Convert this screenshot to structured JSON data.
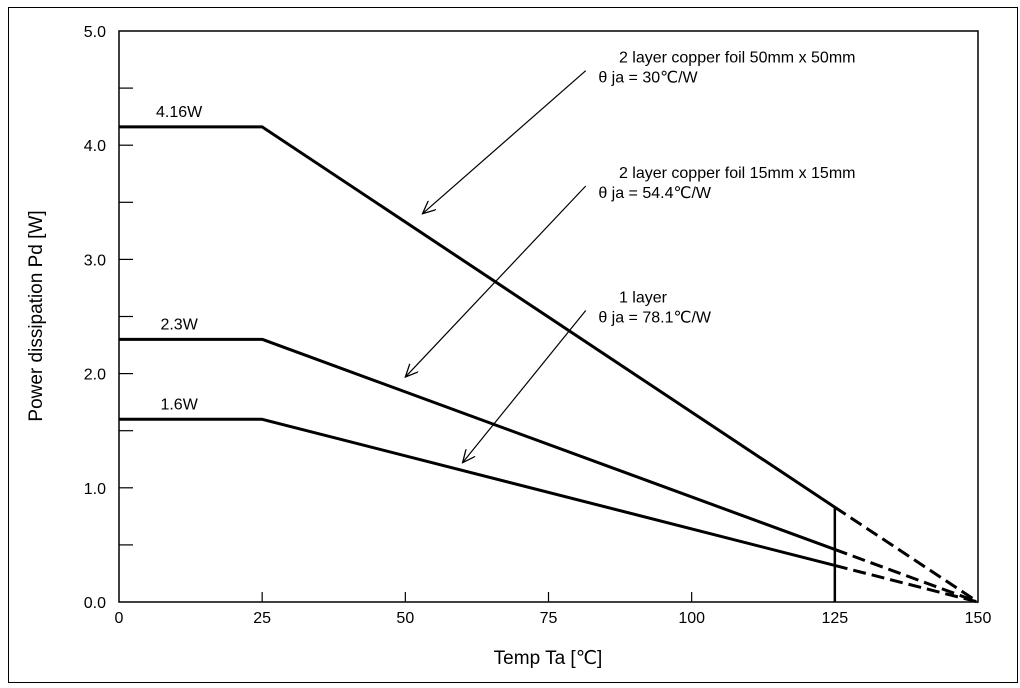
{
  "chart_data": {
    "type": "line",
    "xlabel": "Temp Ta [℃]",
    "ylabel": "Power dissipation Pd [W]",
    "xlim": [
      0,
      150
    ],
    "ylim": [
      0,
      5.0
    ],
    "x_ticks": [
      "0",
      "25",
      "50",
      "75",
      "100",
      "125",
      "150"
    ],
    "y_ticks": [
      "0.0",
      "1.0",
      "2.0",
      "3.0",
      "4.0",
      "5.0"
    ],
    "grid": false,
    "legend": "none",
    "series": [
      {
        "solid": [
          [
            0,
            4.16
          ],
          [
            25,
            4.16
          ],
          [
            125,
            0.83
          ]
        ],
        "dashed": [
          [
            125,
            0.83
          ],
          [
            150,
            0
          ]
        ],
        "label": "4.16W"
      },
      {
        "solid": [
          [
            0,
            2.3
          ],
          [
            25,
            2.3
          ],
          [
            125,
            0.46
          ]
        ],
        "dashed": [
          [
            125,
            0.46
          ],
          [
            150,
            0
          ]
        ],
        "label": "2.3W"
      },
      {
        "solid": [
          [
            0,
            1.6
          ],
          [
            25,
            1.6
          ],
          [
            125,
            0.32
          ]
        ],
        "dashed": [
          [
            125,
            0.32
          ],
          [
            150,
            0
          ]
        ],
        "label": "1.6W"
      }
    ],
    "marker_line": {
      "x": 125,
      "y_from": 0,
      "y_to": 0.83
    },
    "annotations": [
      {
        "line1": "2 layer copper foil 50mm x 50mm",
        "line2": "θ ja = 30℃/W",
        "arrow_to": [
          53,
          3.4
        ]
      },
      {
        "line1": "2 layer copper foil 15mm x 15mm",
        "line2": "θ ja = 54.4℃/W",
        "arrow_to": [
          50,
          1.97
        ]
      },
      {
        "line1": "1 layer",
        "line2": "θ ja = 78.1℃/W",
        "arrow_to": [
          60,
          1.22
        ]
      }
    ]
  }
}
